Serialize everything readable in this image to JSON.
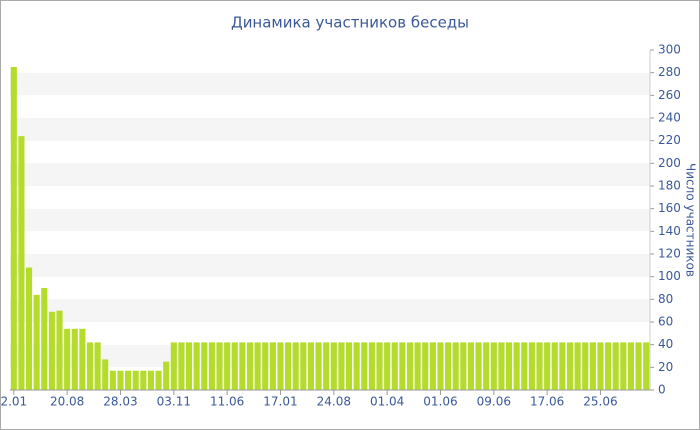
{
  "chart_data": {
    "type": "bar",
    "title": "Динамика участников беседы",
    "y_label": "Число участников",
    "categories": [
      "2.01",
      null,
      null,
      null,
      null,
      null,
      null,
      "20.08",
      null,
      null,
      null,
      null,
      null,
      null,
      "28.03",
      null,
      null,
      null,
      null,
      null,
      null,
      "03.11",
      null,
      null,
      null,
      null,
      null,
      null,
      "11.06",
      null,
      null,
      null,
      null,
      null,
      null,
      "17.01",
      null,
      null,
      null,
      null,
      null,
      null,
      "24.08",
      null,
      null,
      null,
      null,
      null,
      null,
      "01.04",
      null,
      null,
      null,
      null,
      null,
      null,
      "01.06",
      null,
      null,
      null,
      null,
      null,
      null,
      "09.06",
      null,
      null,
      null,
      null,
      null,
      null,
      "17.06",
      null,
      null,
      null,
      null,
      null,
      null,
      "25.06",
      null,
      null,
      null,
      null,
      null,
      null
    ],
    "values": [
      285,
      224,
      108,
      84,
      90,
      69,
      70,
      54,
      54,
      54,
      42,
      42,
      27,
      17,
      17,
      17,
      17,
      17,
      17,
      17,
      25,
      42,
      42,
      42,
      42,
      42,
      42,
      42,
      42,
      42,
      42,
      42,
      42,
      42,
      42,
      42,
      42,
      42,
      42,
      42,
      42,
      42,
      42,
      42,
      42,
      42,
      42,
      42,
      42,
      42,
      42,
      42,
      42,
      42,
      42,
      42,
      42,
      42,
      42,
      42,
      42,
      42,
      42,
      42,
      42,
      42,
      42,
      42,
      42,
      42,
      42,
      42,
      42,
      42,
      42,
      42,
      42,
      42,
      42,
      42,
      42,
      42,
      42,
      42
    ],
    "color": "#b5dc2b",
    "ylim": [
      0,
      300
    ],
    "yticks": [
      0,
      20,
      40,
      60,
      80,
      100,
      120,
      140,
      160,
      180,
      200,
      220,
      240,
      260,
      280,
      300
    ],
    "grid": true
  }
}
